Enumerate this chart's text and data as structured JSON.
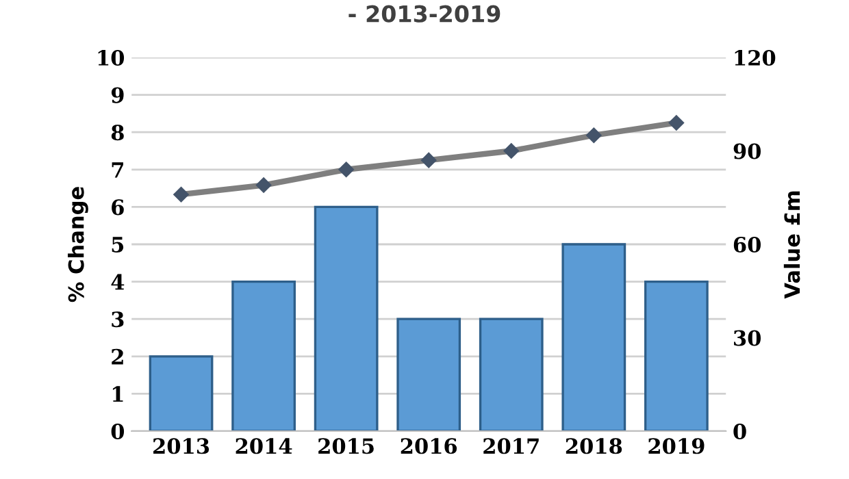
{
  "chart_data": {
    "type": "bar",
    "title": "- 2013-2019",
    "categories": [
      "2013",
      "2014",
      "2015",
      "2016",
      "2017",
      "2018",
      "2019"
    ],
    "ylabel": "% Change",
    "y2label": "Value £m",
    "series": [
      {
        "color": "#5b9bd5",
        "values": [
          2,
          4,
          6,
          3,
          3,
          5,
          4
        ]
      },
      {
        "type": "line",
        "axis": "y2",
        "color": "#7f7f7f",
        "values": [
          76,
          79,
          84,
          87,
          90,
          95,
          99
        ]
      }
    ],
    "ylim": [
      0,
      10
    ],
    "yticks": [
      0,
      1,
      2,
      3,
      4,
      5,
      6,
      7,
      8,
      9,
      10
    ],
    "y2lim": [
      0,
      120
    ],
    "y2ticks": [
      0,
      30,
      60,
      90,
      120
    ],
    "grid": "y",
    "marker": "diamond",
    "line_style": "solid",
    "legend": false
  }
}
